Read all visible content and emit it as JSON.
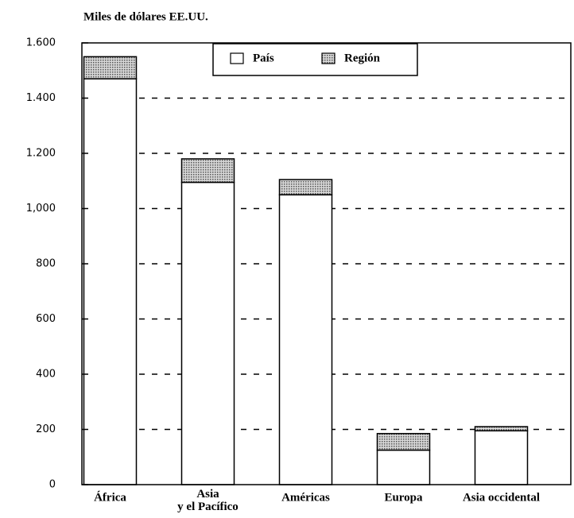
{
  "chart_data": {
    "type": "stacked_bar",
    "title": "Miles de dólares EE.UU.",
    "categories": [
      "África",
      "Asia\ny el Pacífico",
      "Américas",
      "Europa",
      "Asia occidental"
    ],
    "series": [
      {
        "name": "País",
        "color": "#ffffff",
        "values": [
          1470,
          1095,
          1050,
          125,
          195
        ]
      },
      {
        "name": "Región",
        "color": "#a8a8a8",
        "values": [
          80,
          85,
          55,
          60,
          15
        ]
      }
    ],
    "ylim": [
      0,
      1600
    ],
    "yticks": [
      0,
      200,
      400,
      600,
      800,
      {
        "value": 1000,
        "label": "1,000"
      },
      {
        "value": 1200,
        "label": "1.200"
      },
      {
        "value": 1400,
        "label": "1.400"
      },
      {
        "value": 1600,
        "label": "1.600"
      }
    ],
    "grid": true,
    "legend": "top"
  }
}
